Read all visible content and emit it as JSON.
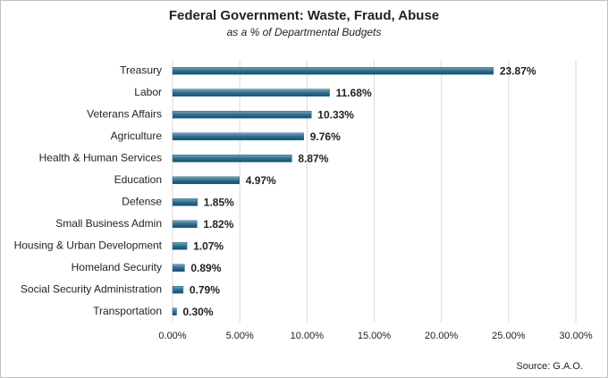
{
  "chart_data": {
    "type": "hbar",
    "title": "Federal Government: Waste, Fraud, Abuse",
    "subtitle": "as a % of Departmental Budgets",
    "source": "Source: G.A.O.",
    "categories": [
      "Treasury",
      "Labor",
      "Veterans Affairs",
      "Agriculture",
      "Health & Human Services",
      "Education",
      "Defense",
      "Small Business Admin",
      "Housing & Urban Development",
      "Homeland Security",
      "Social Security Administration",
      "Transportation"
    ],
    "values": [
      23.87,
      11.68,
      10.33,
      9.76,
      8.87,
      4.97,
      1.85,
      1.82,
      1.07,
      0.89,
      0.79,
      0.3
    ],
    "value_labels": [
      "23.87%",
      "11.68%",
      "10.33%",
      "9.76%",
      "8.87%",
      "4.97%",
      "1.85%",
      "1.82%",
      "1.07%",
      "0.89%",
      "0.79%",
      "0.30%"
    ],
    "color": "#2f6f8f",
    "xlim": [
      0,
      30
    ],
    "xticks": [
      {
        "value": 0,
        "label": "0.00%"
      },
      {
        "value": 5,
        "label": "5.00%"
      },
      {
        "value": 10,
        "label": "10.00%"
      },
      {
        "value": 15,
        "label": "15.00%"
      },
      {
        "value": 20,
        "label": "20.00%"
      },
      {
        "value": 25,
        "label": "25.00%"
      },
      {
        "value": 30,
        "label": "30.00%"
      }
    ],
    "grid": true
  }
}
